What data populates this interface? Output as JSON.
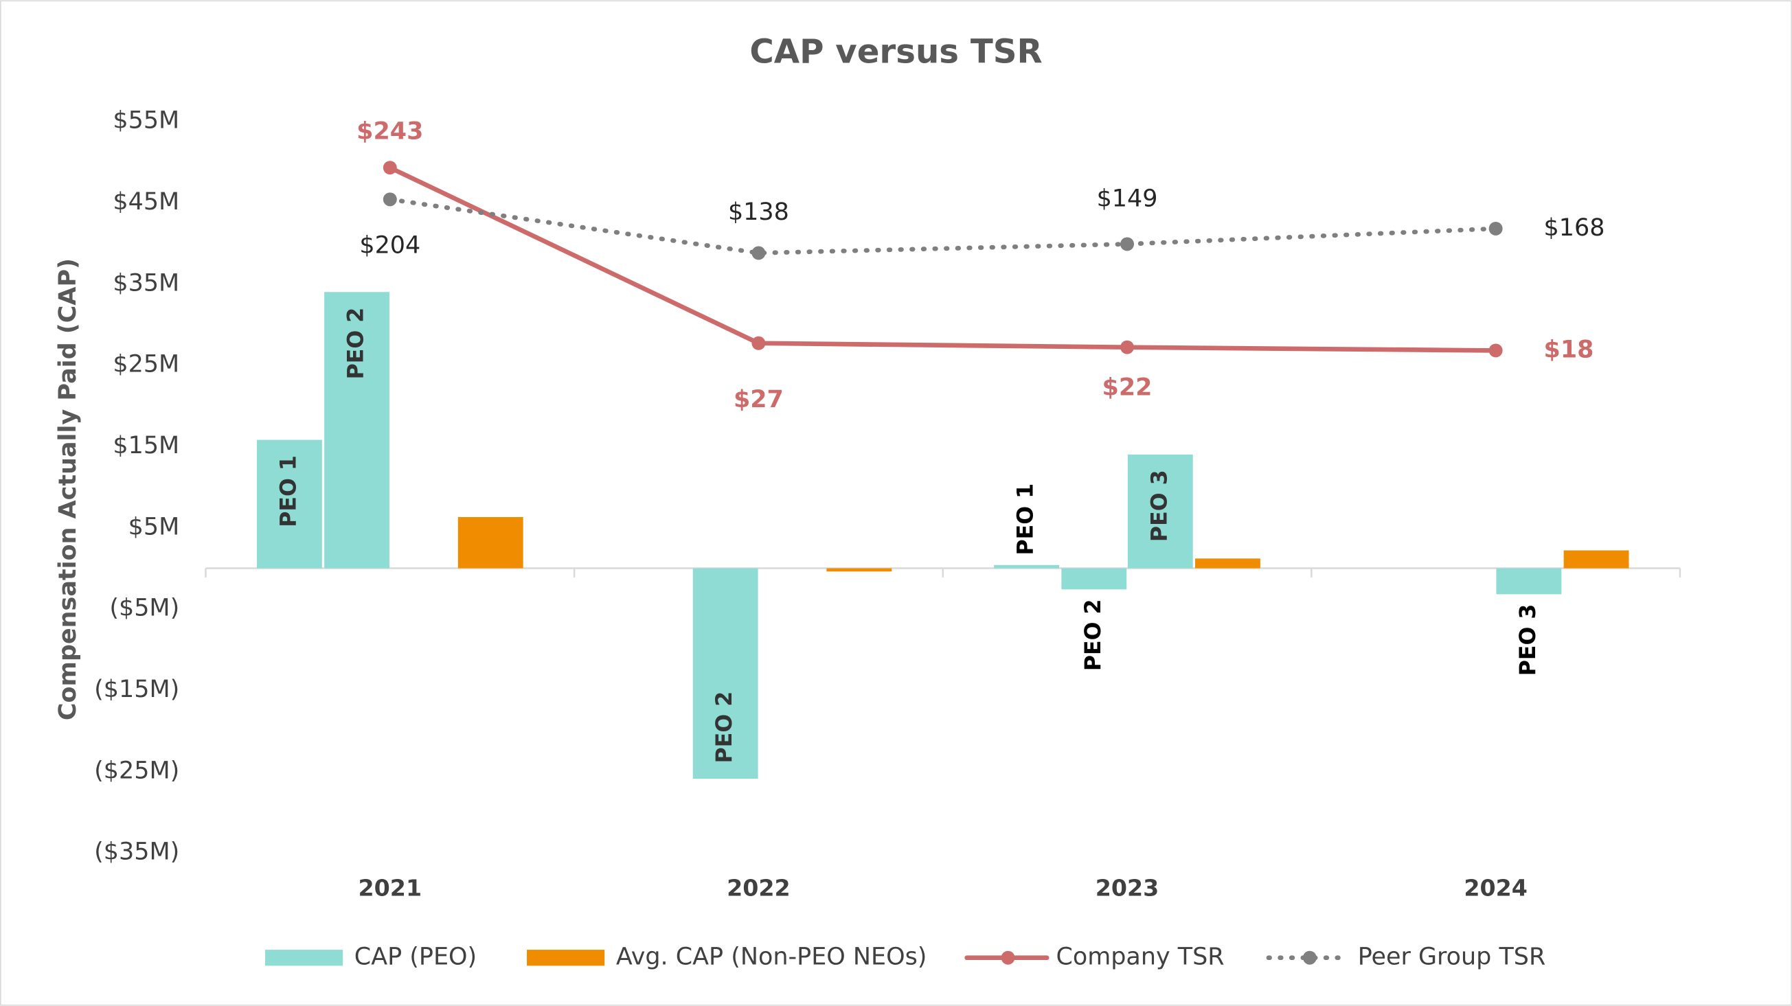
{
  "chart_data": {
    "type": "combo",
    "title": "CAP versus TSR",
    "y_label": "Compensation Actually Paid (CAP)",
    "categories": [
      "2021",
      "2022",
      "2023",
      "2024"
    ],
    "ylim": [
      -35,
      55
    ],
    "yticks": [
      {
        "value": 55,
        "label": "$55M"
      },
      {
        "value": 45,
        "label": "$45M"
      },
      {
        "value": 35,
        "label": "$35M"
      },
      {
        "value": 25,
        "label": "$25M"
      },
      {
        "value": 15,
        "label": "$15M"
      },
      {
        "value": 5,
        "label": "$5M"
      },
      {
        "value": -5,
        "label": "($5M)"
      },
      {
        "value": -15,
        "label": "($15M)"
      },
      {
        "value": -25,
        "label": "($25M)"
      },
      {
        "value": -35,
        "label": "($35M)"
      }
    ],
    "y2lim": [
      -600,
      300
    ],
    "series": [
      {
        "name": "CAP (PEO)",
        "type": "bar",
        "color": "#8fdcd4",
        "bar_labels": [
          "PEO 1",
          "PEO 2",
          "PEO 3"
        ],
        "values": [
          [
            15.8,
            34.0,
            null
          ],
          [
            null,
            -25.9,
            null
          ],
          [
            0.4,
            -2.6,
            14.0
          ],
          [
            null,
            null,
            -3.2
          ]
        ]
      },
      {
        "name": "Avg. CAP (Non-PEO NEOs)",
        "type": "bar",
        "color": "#f08c00",
        "values": [
          6.3,
          -0.4,
          1.2,
          2.2
        ]
      },
      {
        "name": "Company TSR",
        "type": "line",
        "axis": "y2",
        "color": "#cd6b6b",
        "dashed": false,
        "values": [
          243,
          27,
          22,
          18
        ],
        "value_labels": [
          "$243",
          "$27",
          "$22",
          "$18"
        ]
      },
      {
        "name": "Peer Group TSR",
        "type": "line",
        "axis": "y2",
        "color": "#7f7f7f",
        "dashed": true,
        "values": [
          204,
          138,
          149,
          168
        ],
        "value_labels": [
          "$204",
          "$138",
          "$149",
          "$168"
        ]
      }
    ]
  }
}
